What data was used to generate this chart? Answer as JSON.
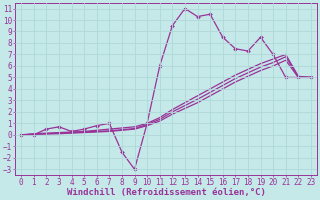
{
  "xlabel": "Windchill (Refroidissement éolien,°C)",
  "xlim": [
    -0.5,
    23.5
  ],
  "ylim": [
    -3.5,
    11.5
  ],
  "xticks": [
    0,
    1,
    2,
    3,
    4,
    5,
    6,
    7,
    8,
    9,
    10,
    11,
    12,
    13,
    14,
    15,
    16,
    17,
    18,
    19,
    20,
    21,
    22,
    23
  ],
  "yticks": [
    -3,
    -2,
    -1,
    0,
    1,
    2,
    3,
    4,
    5,
    6,
    7,
    8,
    9,
    10,
    11
  ],
  "bg_color": "#c5e8e8",
  "grid_color": "#b0d8d8",
  "line_color": "#993399",
  "series_jagged": {
    "x": [
      0,
      1,
      2,
      3,
      4,
      5,
      6,
      7,
      8,
      9,
      10,
      11,
      12,
      13,
      14,
      15,
      16,
      17,
      18,
      19,
      20,
      21,
      22,
      23
    ],
    "y": [
      0,
      0,
      0.5,
      0.7,
      0.3,
      0.5,
      0.8,
      1.0,
      -1.5,
      -3.0,
      1.0,
      6.0,
      9.5,
      11.0,
      10.3,
      10.5,
      8.5,
      7.5,
      7.3,
      8.5,
      7.0,
      5.0,
      5.0,
      5.0
    ]
  },
  "series_line1": {
    "x": [
      0,
      1,
      2,
      3,
      4,
      5,
      6,
      7,
      8,
      9,
      10,
      11,
      12,
      13,
      14,
      15,
      16,
      17,
      18,
      19,
      20,
      21,
      22,
      23
    ],
    "y": [
      0,
      0.1,
      0.15,
      0.2,
      0.25,
      0.3,
      0.4,
      0.5,
      0.6,
      0.7,
      1.0,
      1.5,
      2.2,
      2.8,
      3.4,
      4.0,
      4.6,
      5.2,
      5.7,
      6.2,
      6.6,
      7.0,
      5.1,
      5.0
    ]
  },
  "series_line2": {
    "x": [
      0,
      1,
      2,
      3,
      4,
      5,
      6,
      7,
      8,
      9,
      10,
      11,
      12,
      13,
      14,
      15,
      16,
      17,
      18,
      19,
      20,
      21,
      22,
      23
    ],
    "y": [
      0,
      0.05,
      0.08,
      0.1,
      0.15,
      0.2,
      0.25,
      0.3,
      0.4,
      0.5,
      0.8,
      1.2,
      1.8,
      2.3,
      2.8,
      3.4,
      4.0,
      4.6,
      5.1,
      5.6,
      6.0,
      6.5,
      5.0,
      5.0
    ]
  },
  "series_line3": {
    "x": [
      0,
      1,
      2,
      3,
      4,
      5,
      6,
      7,
      8,
      9,
      10,
      11,
      12,
      13,
      14,
      15,
      16,
      17,
      18,
      19,
      20,
      21,
      22,
      23
    ],
    "y": [
      0,
      0.05,
      0.1,
      0.15,
      0.2,
      0.25,
      0.3,
      0.35,
      0.45,
      0.55,
      0.9,
      1.35,
      2.0,
      2.55,
      3.1,
      3.7,
      4.3,
      4.9,
      5.4,
      5.9,
      6.3,
      6.8,
      5.05,
      5.0
    ]
  },
  "tick_fontsize": 5.5,
  "xlabel_fontsize": 6.5
}
